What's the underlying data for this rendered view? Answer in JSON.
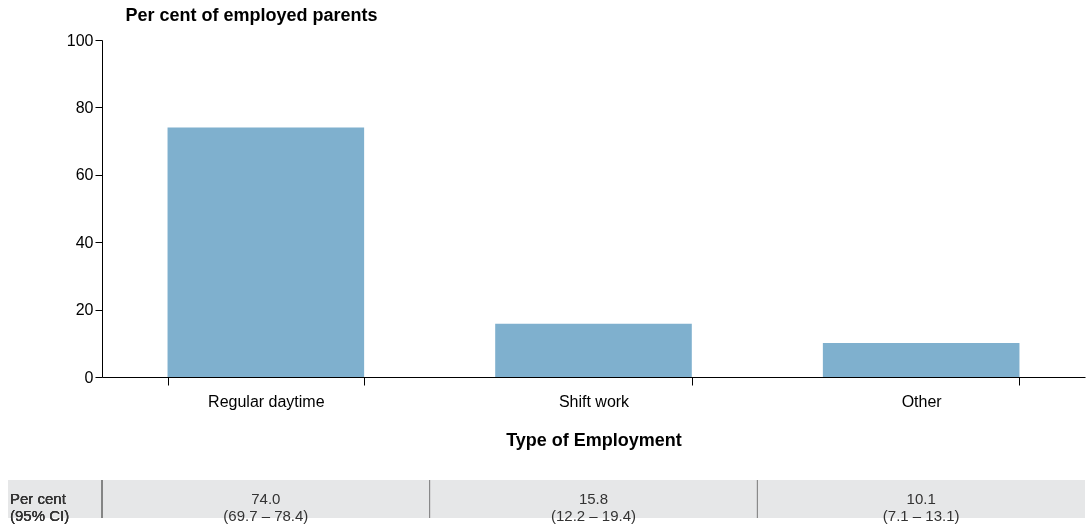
{
  "chart_data": {
    "type": "bar",
    "ylabel": "Per cent of employed parents",
    "xlabel": "Type of Employment",
    "categories": [
      "Regular daytime",
      "Shift work",
      "Other"
    ],
    "values": [
      74.0,
      15.8,
      10.1
    ],
    "color": "#7fb0ce",
    "ylim": [
      0,
      100
    ],
    "yticks": [
      0,
      20,
      40,
      60,
      80,
      100
    ],
    "grid": false,
    "value_labels": [
      "74.0\n(69.7 – 78.4)",
      "15.8\n(12.2 – 19.4)",
      "10.1\n(7.1 – 13.1)"
    ],
    "annotations": [
      "Per cent\n(95% CI)"
    ]
  }
}
